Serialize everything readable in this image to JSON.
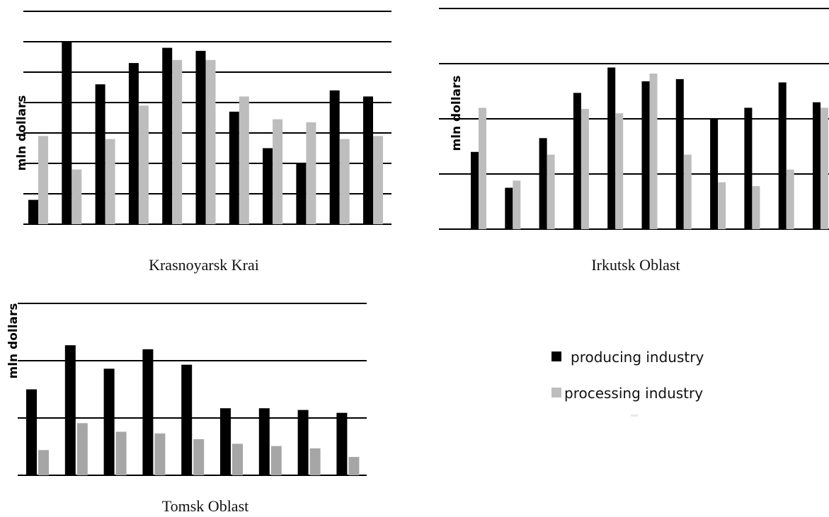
{
  "colors": {
    "producing": "#000000",
    "processing": "#bdbdbd",
    "processing_tomsk": "#a6a6a6"
  },
  "legend": {
    "producing_label": "producing industry",
    "processing_label": "processing industry"
  },
  "chart_data": [
    {
      "type": "bar",
      "title": "Krasnoyarsk Krai",
      "ylabel": "mln dollars",
      "ylim": [
        0,
        7
      ],
      "grid": true,
      "series": [
        {
          "name": "producing industry",
          "values": [
            0.8,
            6.0,
            4.6,
            5.3,
            5.8,
            5.7,
            3.7,
            2.5,
            2.0,
            4.4,
            4.2
          ]
        },
        {
          "name": "processing industry",
          "values": [
            2.9,
            1.8,
            2.8,
            3.9,
            5.4,
            5.4,
            4.2,
            3.45,
            3.35,
            2.8,
            2.9
          ]
        }
      ]
    },
    {
      "type": "bar",
      "title": "Irkutsk Oblast",
      "ylabel": "mln dollars",
      "ylim": [
        0,
        4
      ],
      "grid": true,
      "series": [
        {
          "name": "producing industry",
          "values": [
            1.4,
            0.75,
            1.65,
            2.47,
            2.93,
            2.68,
            2.72,
            2.0,
            2.2,
            2.66,
            2.3
          ]
        },
        {
          "name": "processing industry",
          "values": [
            2.2,
            0.88,
            1.35,
            2.18,
            2.1,
            2.82,
            1.35,
            0.85,
            0.78,
            1.08,
            2.2
          ]
        }
      ]
    },
    {
      "type": "bar",
      "title": "Tomsk Oblast",
      "ylabel": "mln dollars",
      "ylim": [
        0,
        3
      ],
      "grid": true,
      "series": [
        {
          "name": "producing industry",
          "values": [
            1.5,
            2.27,
            1.86,
            2.2,
            1.93,
            1.17,
            1.17,
            1.14,
            1.09
          ]
        },
        {
          "name": "processing industry",
          "values": [
            0.44,
            0.91,
            0.76,
            0.73,
            0.63,
            0.55,
            0.51,
            0.47,
            0.32
          ]
        }
      ]
    }
  ]
}
